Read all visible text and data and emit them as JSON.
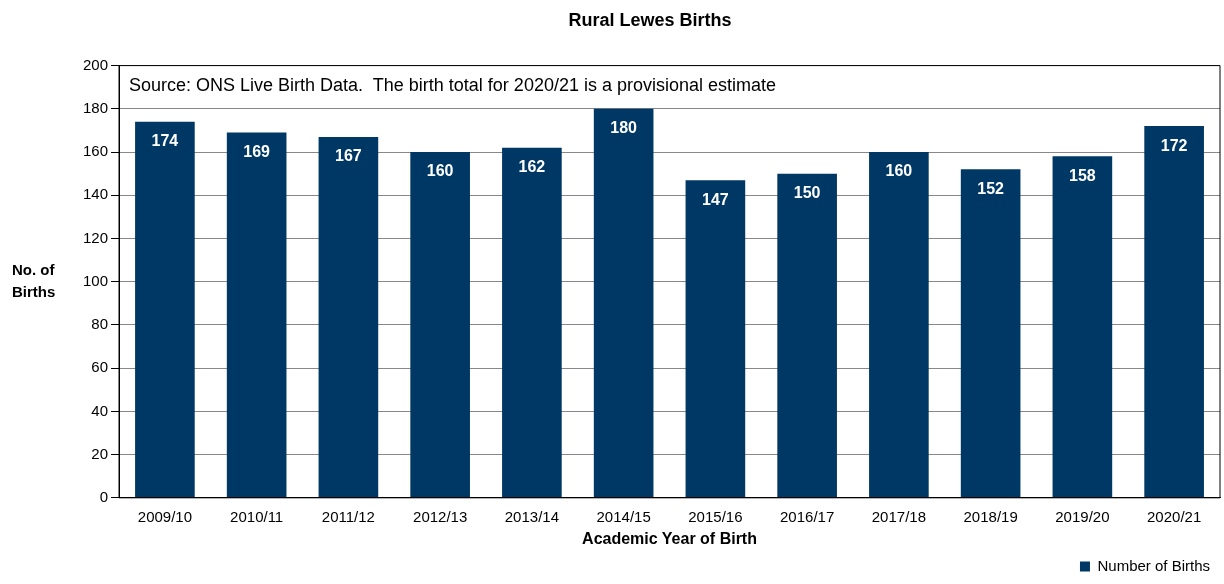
{
  "chart_data": {
    "type": "bar",
    "title": "Rural Lewes Births",
    "xlabel": "Academic Year of Birth",
    "ylabel": "No. of Births",
    "categories": [
      "2009/10",
      "2010/11",
      "2011/12",
      "2012/13",
      "2013/14",
      "2014/15",
      "2015/16",
      "2016/17",
      "2017/18",
      "2018/19",
      "2019/20",
      "2020/21"
    ],
    "series": [
      {
        "name": "Number of Births",
        "color": "#003865",
        "values": [
          174,
          169,
          167,
          160,
          162,
          180,
          147,
          150,
          160,
          152,
          158,
          172
        ]
      }
    ],
    "ylim": [
      0,
      200
    ],
    "yticks": [
      0,
      20,
      40,
      60,
      80,
      100,
      120,
      140,
      160,
      180,
      200
    ],
    "grid": "y",
    "legend": "bottom right",
    "data_labels": true,
    "annotations": [
      "Source: ONS Live Birth Data.  The birth total for 2020/21 is a provisional estimate"
    ]
  }
}
